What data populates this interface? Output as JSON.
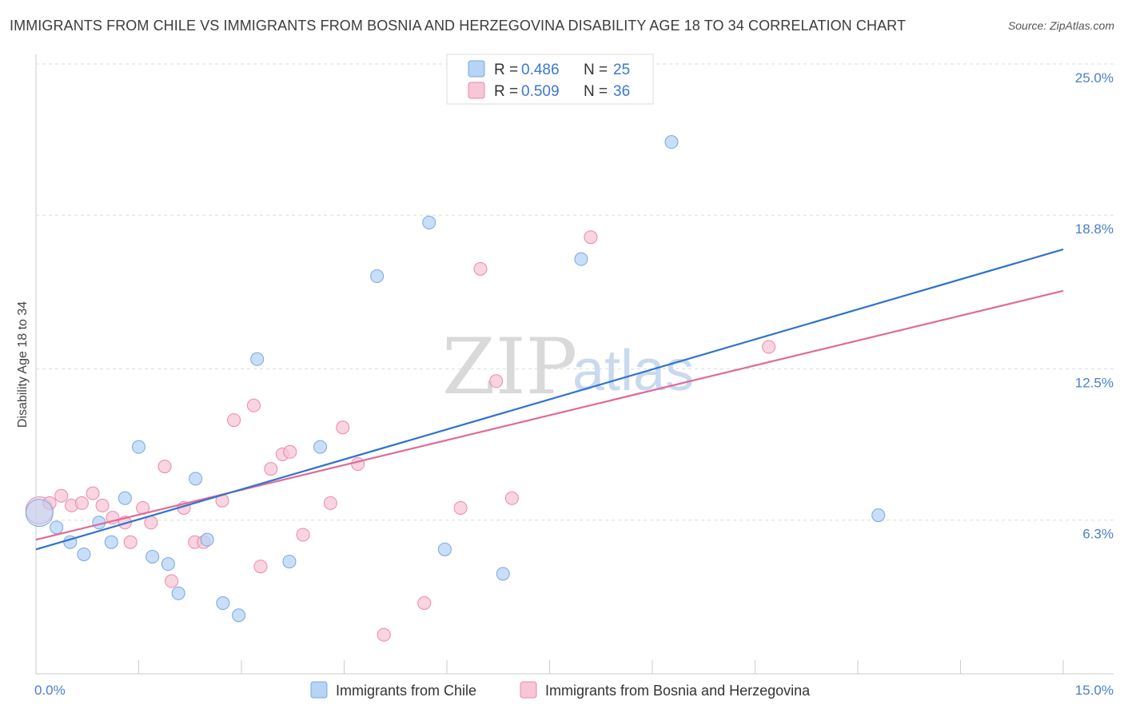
{
  "title": "IMMIGRANTS FROM CHILE VS IMMIGRANTS FROM BOSNIA AND HERZEGOVINA DISABILITY AGE 18 TO 34 CORRELATION CHART",
  "source": "Source: ZipAtlas.com",
  "watermark": {
    "zip": "ZIP",
    "atlas": "atlas"
  },
  "colors": {
    "chile_fill": "#b7d3f5",
    "chile_stroke": "#7aa7e0",
    "chile_line": "#2f72cf",
    "bosnia_fill": "#f8c6d6",
    "bosnia_stroke": "#e98aaa",
    "bosnia_line": "#e06a96",
    "tick_text": "#4a7fc9",
    "grid": "#dddddd"
  },
  "legend": {
    "r_label": "R =",
    "n_label": "N =",
    "chile": {
      "r": "0.486",
      "n": "25"
    },
    "bosnia": {
      "r": "0.509",
      "n": "36"
    }
  },
  "bottom_legend": {
    "chile": "Immigrants from Chile",
    "bosnia": "Immigrants from Bosnia and Herzegovina"
  },
  "chart_data": {
    "type": "scatter",
    "title": "IMMIGRANTS FROM CHILE VS IMMIGRANTS FROM BOSNIA AND HERZEGOVINA DISABILITY AGE 18 TO 34 CORRELATION CHART",
    "xlabel": "",
    "ylabel": "Disability Age 18 to 34",
    "xlim": [
      0,
      15
    ],
    "ylim": [
      0,
      25.0
    ],
    "x_tick_labels": [
      "0.0%",
      "15.0%"
    ],
    "y_ticks": [
      6.3,
      12.5,
      18.8,
      25.0
    ],
    "y_tick_labels": [
      "6.3%",
      "12.5%",
      "18.8%",
      "25.0%"
    ],
    "grid": true,
    "legend_position": "top-center",
    "series": [
      {
        "name": "Immigrants from Chile",
        "r": 0.486,
        "n": 25,
        "trend": {
          "x": [
            0,
            15
          ],
          "y": [
            5.1,
            17.4
          ]
        },
        "points": [
          [
            0.05,
            6.6
          ],
          [
            0.3,
            6.0
          ],
          [
            0.5,
            5.4
          ],
          [
            0.7,
            4.9
          ],
          [
            0.92,
            6.2
          ],
          [
            1.1,
            5.4
          ],
          [
            1.3,
            7.2
          ],
          [
            1.5,
            9.3
          ],
          [
            1.7,
            4.8
          ],
          [
            1.93,
            4.5
          ],
          [
            2.08,
            3.3
          ],
          [
            2.33,
            8.0
          ],
          [
            2.5,
            5.5
          ],
          [
            2.73,
            2.9
          ],
          [
            2.96,
            2.4
          ],
          [
            3.23,
            12.9
          ],
          [
            3.7,
            4.6
          ],
          [
            4.15,
            9.3
          ],
          [
            4.98,
            16.3
          ],
          [
            5.74,
            18.5
          ],
          [
            5.97,
            5.1
          ],
          [
            6.82,
            4.1
          ],
          [
            7.96,
            17.0
          ],
          [
            9.28,
            21.8
          ],
          [
            12.3,
            6.5
          ]
        ]
      },
      {
        "name": "Immigrants from Bosnia and Herzegovina",
        "r": 0.509,
        "n": 36,
        "trend": {
          "x": [
            0,
            15
          ],
          "y": [
            5.5,
            15.7
          ]
        },
        "points": [
          [
            0.05,
            6.7
          ],
          [
            0.2,
            7.0
          ],
          [
            0.37,
            7.3
          ],
          [
            0.52,
            6.9
          ],
          [
            0.67,
            7.0
          ],
          [
            0.83,
            7.4
          ],
          [
            0.97,
            6.9
          ],
          [
            1.12,
            6.4
          ],
          [
            1.3,
            6.2
          ],
          [
            1.38,
            5.4
          ],
          [
            1.56,
            6.8
          ],
          [
            1.68,
            6.2
          ],
          [
            1.88,
            8.5
          ],
          [
            1.98,
            3.8
          ],
          [
            2.16,
            6.8
          ],
          [
            2.32,
            5.4
          ],
          [
            2.45,
            5.4
          ],
          [
            2.72,
            7.1
          ],
          [
            2.89,
            10.4
          ],
          [
            3.18,
            11.0
          ],
          [
            3.28,
            4.4
          ],
          [
            3.43,
            8.4
          ],
          [
            3.6,
            9.0
          ],
          [
            3.71,
            9.1
          ],
          [
            3.9,
            5.7
          ],
          [
            4.3,
            7.0
          ],
          [
            4.48,
            10.1
          ],
          [
            4.7,
            8.6
          ],
          [
            5.08,
            1.6
          ],
          [
            5.67,
            2.9
          ],
          [
            6.2,
            6.8
          ],
          [
            6.49,
            16.6
          ],
          [
            6.72,
            12.0
          ],
          [
            6.95,
            7.2
          ],
          [
            8.1,
            17.9
          ],
          [
            10.7,
            13.4
          ]
        ]
      }
    ]
  }
}
